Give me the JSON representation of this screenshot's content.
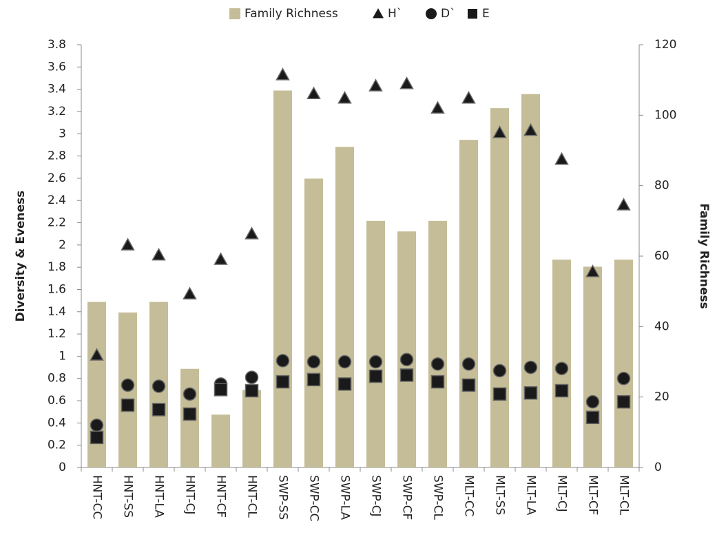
{
  "chart_data": {
    "type": "bar",
    "categories": [
      "HNT-CC",
      "HNT-SS",
      "HNT-LA",
      "HNT-CJ",
      "HNT-CF",
      "HNT-CL",
      "SWP-SS",
      "SWP-CC",
      "SWP-LA",
      "SWP-CJ",
      "SWP-CF",
      "SWP-CL",
      "MLT-CC",
      "MLT-SS",
      "MLT-LA",
      "MLT-CJ",
      "MLT-CF",
      "MLT-CL"
    ],
    "y_label": "Diversity & Eveness",
    "y2_label": "Family Richness",
    "ylim": [
      0,
      3.8
    ],
    "yticks": [
      0,
      0.2,
      0.4,
      0.6,
      0.8,
      1,
      1.2,
      1.4,
      1.6,
      1.8,
      2,
      2.2,
      2.4,
      2.6,
      2.8,
      3,
      3.2,
      3.4,
      3.6,
      3.8
    ],
    "y2lim": [
      0,
      120
    ],
    "y2ticks": [
      0,
      20,
      40,
      60,
      80,
      100,
      120
    ],
    "legend": "top",
    "series": [
      {
        "name": "Family Richness",
        "type": "bar",
        "axis": "y2",
        "color": "#c4bd97",
        "values": [
          47,
          44,
          47,
          28,
          15,
          22,
          107,
          82,
          91,
          70,
          67,
          70,
          93,
          102,
          106,
          59,
          57,
          59
        ]
      },
      {
        "name": "H`",
        "type": "scatter",
        "marker": "triangle",
        "color": "#1a1a1a",
        "values": [
          1.01,
          2.0,
          1.91,
          1.56,
          1.87,
          2.1,
          3.53,
          3.36,
          3.32,
          3.43,
          3.45,
          3.23,
          3.32,
          3.01,
          3.03,
          2.77,
          1.76,
          2.36
        ]
      },
      {
        "name": "D`",
        "type": "scatter",
        "marker": "circle",
        "color": "#1a1a1a",
        "values": [
          0.38,
          0.74,
          0.73,
          0.66,
          0.75,
          0.81,
          0.96,
          0.95,
          0.95,
          0.95,
          0.97,
          0.93,
          0.93,
          0.87,
          0.9,
          0.89,
          0.59,
          0.8
        ]
      },
      {
        "name": "E",
        "type": "scatter",
        "marker": "square",
        "color": "#1a1a1a",
        "values": [
          0.27,
          0.56,
          0.52,
          0.48,
          0.7,
          0.69,
          0.77,
          0.79,
          0.75,
          0.82,
          0.83,
          0.77,
          0.74,
          0.66,
          0.67,
          0.69,
          0.45,
          0.59
        ]
      }
    ]
  }
}
